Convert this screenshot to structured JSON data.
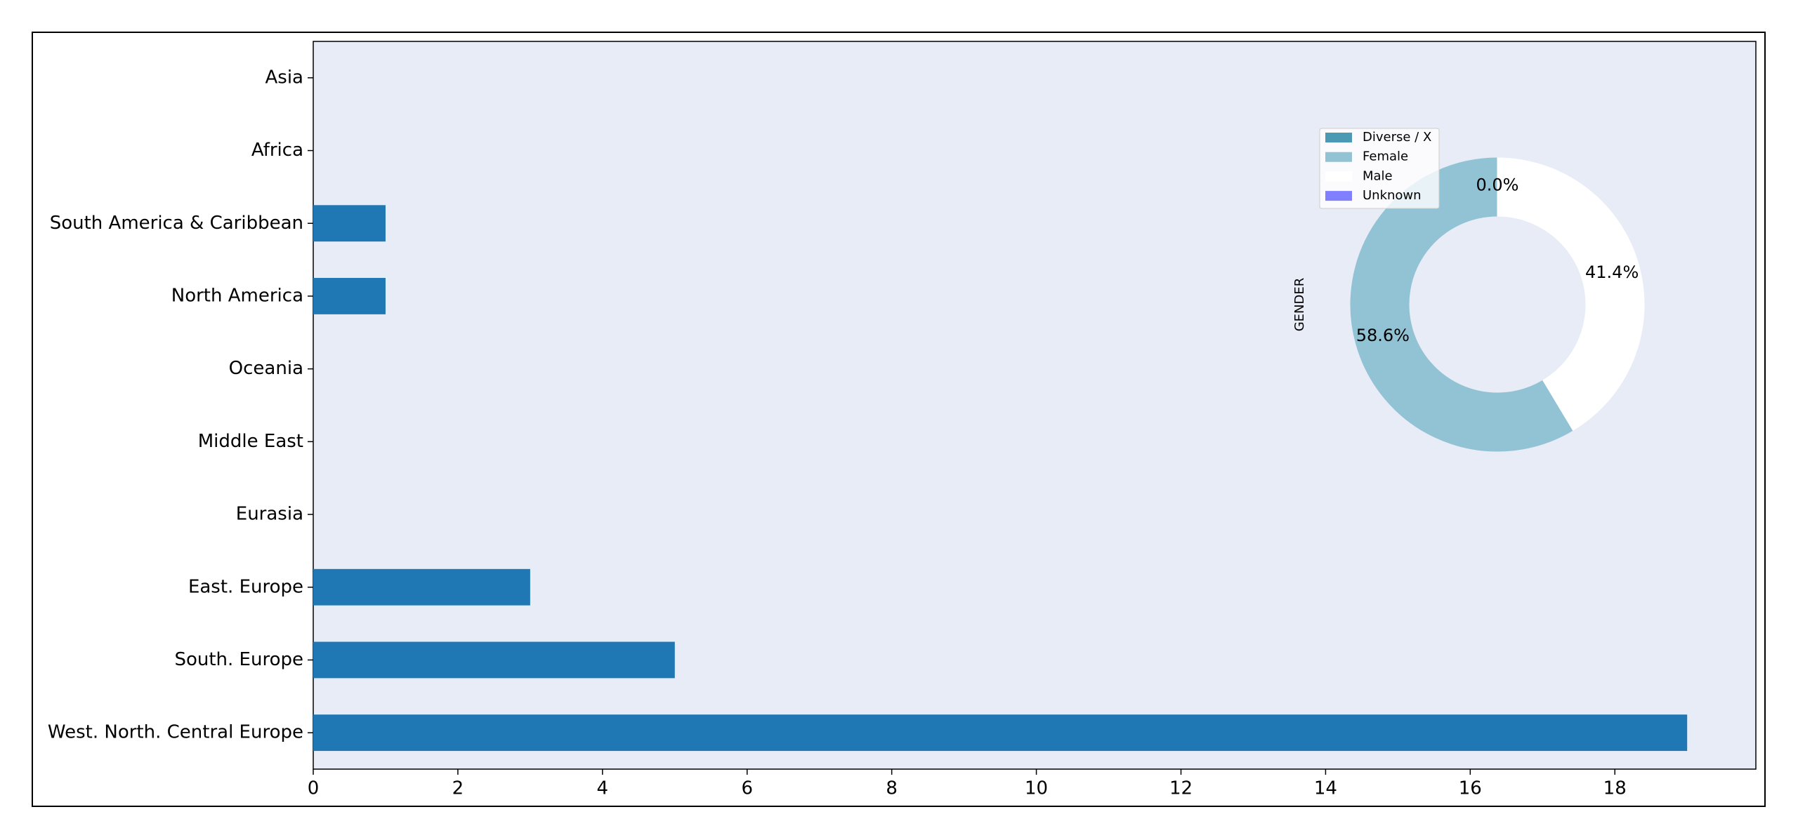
{
  "chart_data": [
    {
      "type": "bar",
      "categories": [
        "Asia",
        "Africa",
        "South America & Caribbean",
        "North America",
        "Oceania",
        "Middle East",
        "Eurasia",
        "East. Europe",
        "South. Europe",
        "West. North. Central Europe"
      ],
      "values": [
        0,
        0,
        1,
        1,
        0,
        0,
        0,
        3,
        5,
        19
      ],
      "color": "#1f77b4",
      "xlim": [
        0,
        19.95
      ],
      "xticks": [
        0,
        2,
        4,
        6,
        8,
        10,
        12,
        14,
        16,
        18
      ],
      "background": "#e8ecf7"
    },
    {
      "type": "pie",
      "ylabel": "GENDER",
      "categories": [
        "Diverse / X",
        "Female",
        "Male",
        "Unknown"
      ],
      "values": [
        0,
        58.6,
        41.4,
        0
      ],
      "value_labels": [
        "0.0%",
        "58.6%",
        "41.4%",
        "0.0%"
      ],
      "colors": [
        "#4a9ab4",
        "#92c3d4",
        "#ffffff",
        "#8080ff"
      ],
      "legend": "upper left"
    }
  ]
}
